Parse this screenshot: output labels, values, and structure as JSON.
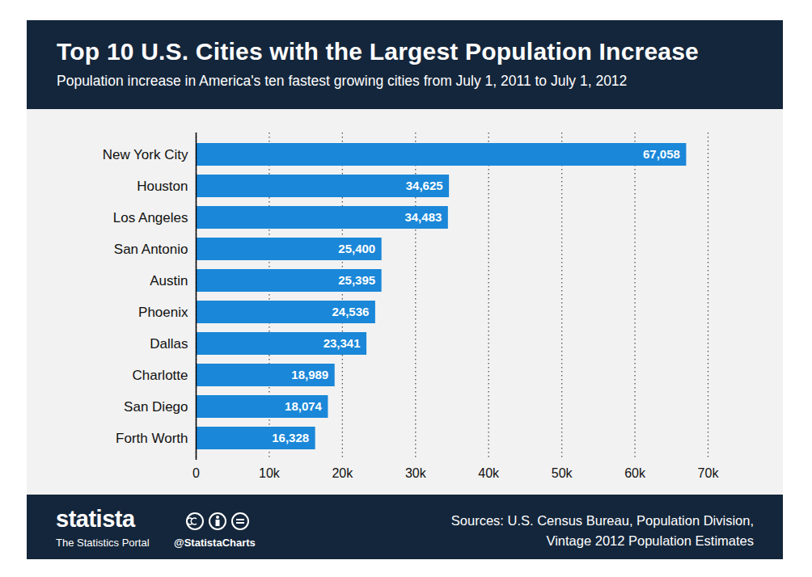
{
  "chart_data": {
    "type": "bar",
    "title": "Top 10 U.S. Cities with the Largest Population Increase",
    "subtitle": "Population increase in America's ten fastest growing cities from July 1, 2011 to July 1, 2012",
    "categories": [
      "New York City",
      "Houston",
      "Los Angeles",
      "San Antonio",
      "Austin",
      "Phoenix",
      "Dallas",
      "Charlotte",
      "San Diego",
      "Forth Worth"
    ],
    "values": [
      67058,
      34625,
      34483,
      25400,
      25395,
      24536,
      23341,
      18989,
      18074,
      16328
    ],
    "value_labels": [
      "67,058",
      "34,625",
      "34,483",
      "25,400",
      "25,395",
      "24,536",
      "23,341",
      "18,989",
      "18,074",
      "16,328"
    ],
    "color": "#1a87d8",
    "orientation": "horizontal",
    "data_labels": true,
    "grid": true,
    "xlim": [
      0,
      70000
    ],
    "xticks": [
      0,
      {
        "value": 10000,
        "label": "10k"
      },
      {
        "value": 20000,
        "label": "20k"
      },
      {
        "value": 30000,
        "label": "30k"
      },
      {
        "value": 40000,
        "label": "40k"
      },
      {
        "value": 50000,
        "label": "50k"
      },
      {
        "value": 60000,
        "label": "60k"
      },
      {
        "value": 70000,
        "label": "70k"
      }
    ],
    "logo": "statista",
    "logo_subtitle": "The Statistics Portal",
    "handle": "@StatistaCharts",
    "source": [
      "Sources: U.S. Census Bureau, Population Division,",
      "Vintage 2012 Population Estimates"
    ]
  }
}
